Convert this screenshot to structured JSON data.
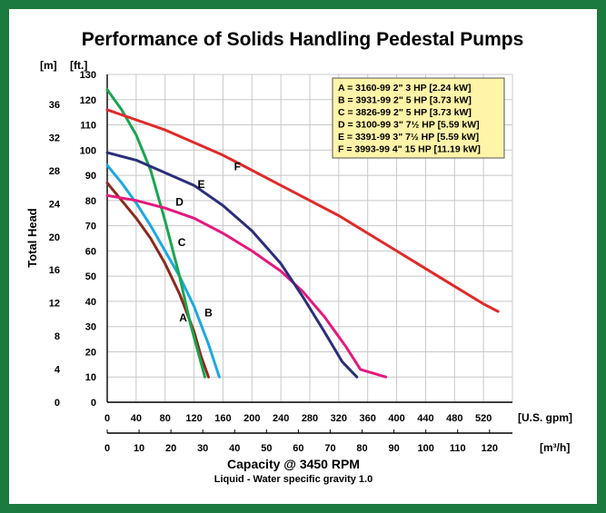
{
  "chart_data": {
    "type": "line",
    "title": "Performance of Solids Handling Pedestal Pumps",
    "ylabel": "Total Head",
    "y_unit_m": "[m]",
    "y_unit_ft": "[ft.]",
    "x_unit_gpm": "[U.S. gpm]",
    "x_unit_m3h": "[m³/h]",
    "xlabel": "Capacity @ 3450 RPM",
    "subtitle": "Liquid - Water specific gravity 1.0",
    "ylim": [
      0,
      130
    ],
    "xlim": [
      0,
      560
    ],
    "grid": true,
    "legend_position": "top-right",
    "ft_ticks": [
      "0",
      "10",
      "20",
      "30",
      "40",
      "50",
      "60",
      "70",
      "80",
      "90",
      "100",
      "110",
      "120",
      "130"
    ],
    "m_ticks": [
      "0",
      "4",
      "8",
      "12",
      "16",
      "20",
      "24",
      "28",
      "32",
      "36"
    ],
    "m_tick_values": [
      0,
      4,
      8,
      12,
      16,
      20,
      24,
      28,
      32,
      36
    ],
    "gpm_ticks": [
      "0",
      "40",
      "80",
      "120",
      "160",
      "200",
      "240",
      "280",
      "320",
      "360",
      "400",
      "440",
      "480",
      "520"
    ],
    "m3h_ticks": [
      "0",
      "10",
      "20",
      "30",
      "40",
      "50",
      "60",
      "70",
      "80",
      "90",
      "100",
      "110",
      "120"
    ],
    "m3h_tick_values": [
      0,
      10,
      20,
      30,
      40,
      50,
      60,
      70,
      80,
      90,
      100,
      110,
      120
    ],
    "legend": [
      "A = 3160-99 2\" 3 HP [2.24 kW]",
      "B = 3931-99 2\" 5 HP [3.73 kW]",
      "C = 3826-99 2\" 5 HP [3.73 kW]",
      "D = 3100-99 3\" 7½ HP [5.59 kW]",
      "E = 3391-99 3\" 7½ HP [5.59 kW]",
      "F = 3993-99 4\" 15 HP [11.19 kW]"
    ],
    "series": [
      {
        "name": "A",
        "color": "#8B2A1E",
        "label_at": [
          105,
          32
        ],
        "points": [
          [
            0,
            87
          ],
          [
            20,
            80
          ],
          [
            40,
            73
          ],
          [
            60,
            65
          ],
          [
            80,
            55
          ],
          [
            100,
            43
          ],
          [
            120,
            28
          ],
          [
            130,
            18
          ],
          [
            140,
            10
          ]
        ]
      },
      {
        "name": "B",
        "color": "#1BA9E1",
        "label_at": [
          140,
          34
        ],
        "points": [
          [
            0,
            94
          ],
          [
            20,
            87
          ],
          [
            40,
            79
          ],
          [
            60,
            70
          ],
          [
            80,
            60
          ],
          [
            100,
            50
          ],
          [
            120,
            38
          ],
          [
            140,
            23
          ],
          [
            155,
            10
          ]
        ]
      },
      {
        "name": "C",
        "color": "#1AA550",
        "label_at": [
          103,
          62
        ],
        "points": [
          [
            0,
            124
          ],
          [
            20,
            116
          ],
          [
            40,
            106
          ],
          [
            60,
            92
          ],
          [
            80,
            72
          ],
          [
            100,
            50
          ],
          [
            115,
            31
          ],
          [
            135,
            10
          ]
        ]
      },
      {
        "name": "D",
        "color": "#E5197E",
        "label_at": [
          100,
          78
        ],
        "points": [
          [
            0,
            82
          ],
          [
            40,
            80
          ],
          [
            80,
            77
          ],
          [
            120,
            73
          ],
          [
            160,
            67
          ],
          [
            200,
            60
          ],
          [
            240,
            52
          ],
          [
            270,
            44
          ],
          [
            300,
            34
          ],
          [
            330,
            22
          ],
          [
            350,
            13
          ],
          [
            385,
            10
          ]
        ]
      },
      {
        "name": "E",
        "color": "#2B2F7A",
        "label_at": [
          130,
          85
        ],
        "points": [
          [
            0,
            99
          ],
          [
            40,
            96
          ],
          [
            80,
            91
          ],
          [
            120,
            86
          ],
          [
            160,
            78
          ],
          [
            200,
            68
          ],
          [
            240,
            55
          ],
          [
            270,
            42
          ],
          [
            300,
            28
          ],
          [
            325,
            16
          ],
          [
            345,
            10
          ]
        ]
      },
      {
        "name": "F",
        "color": "#E02A2A",
        "label_at": [
          180,
          92
        ],
        "points": [
          [
            0,
            116
          ],
          [
            40,
            112
          ],
          [
            80,
            108
          ],
          [
            120,
            103
          ],
          [
            160,
            98
          ],
          [
            200,
            92
          ],
          [
            240,
            86
          ],
          [
            280,
            80
          ],
          [
            320,
            74
          ],
          [
            360,
            67
          ],
          [
            400,
            60
          ],
          [
            440,
            53
          ],
          [
            480,
            46
          ],
          [
            520,
            39
          ],
          [
            540,
            36
          ]
        ]
      }
    ]
  },
  "colors": {
    "frame": "#1B7A3E",
    "legend_bg": "#FFF4A8",
    "grid": "#C8C8C8"
  }
}
